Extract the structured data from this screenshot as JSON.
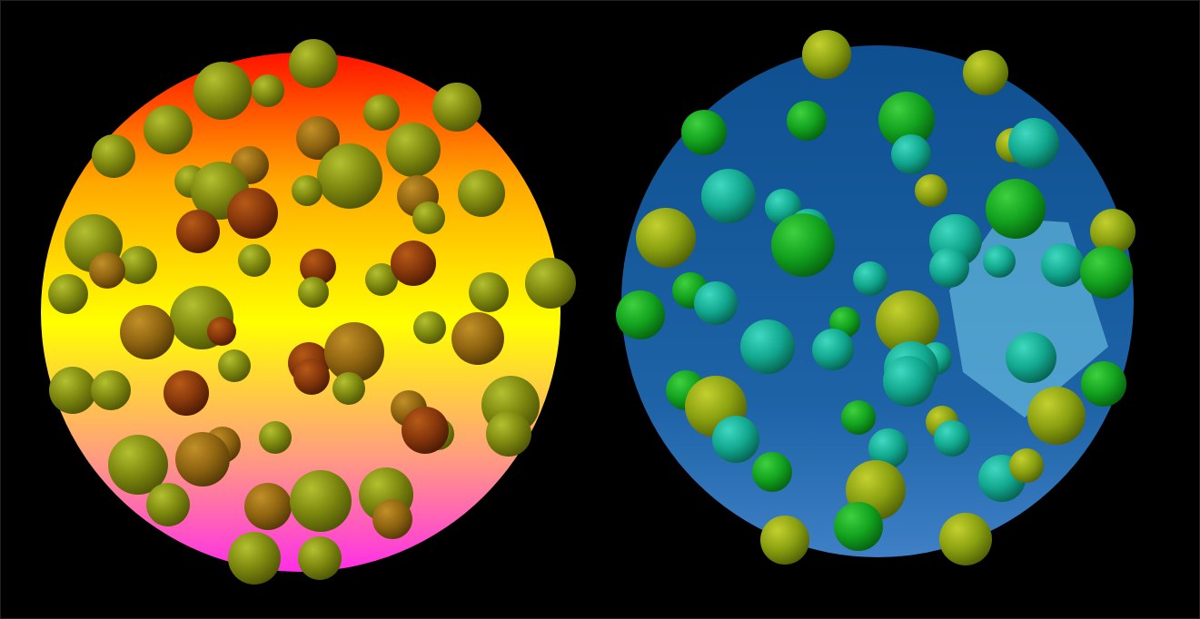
{
  "panels": [
    {
      "id": "left",
      "palette": {
        "sky_top": "#ff1a00",
        "sky_upper": "#ffb000",
        "sky_mid": "#ffff00",
        "sky_lower": "#ff9f7a",
        "sky_bottom": "#ff33e6"
      },
      "sphere_colors": {
        "olive": "#7f8a10",
        "brown": "#8a3a0a",
        "amber": "#9a6a10"
      }
    },
    {
      "id": "right",
      "palette": {
        "disk": "#1e5fa0",
        "disk_edge": "#3a7fc4",
        "hexagon": "#5cc4e6"
      },
      "sphere_colors": {
        "green": "#10a020",
        "teal": "#10a890",
        "olive": "#8aa010"
      }
    }
  ]
}
